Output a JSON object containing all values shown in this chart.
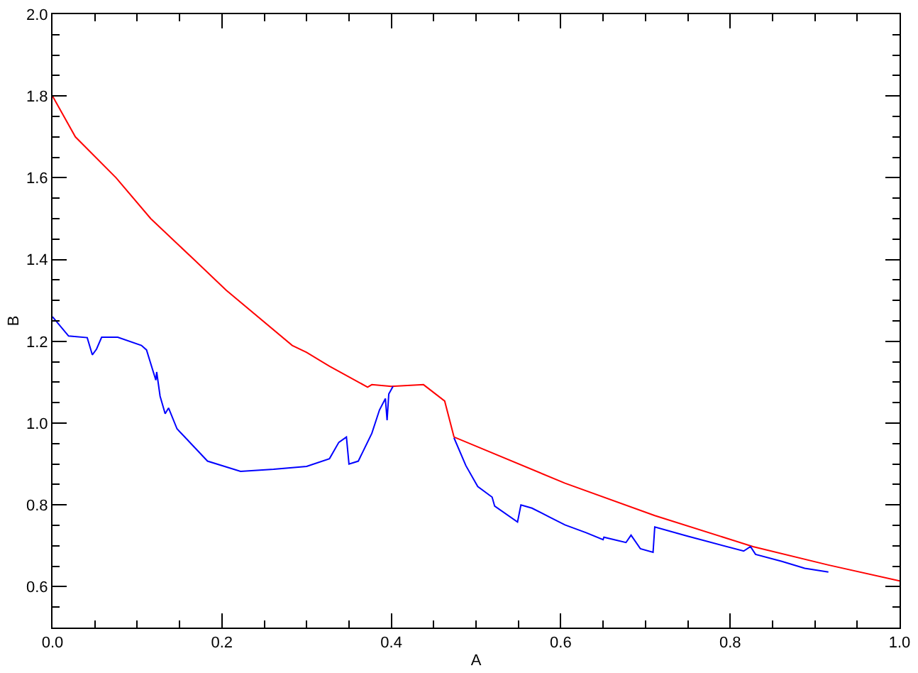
{
  "chart_data": {
    "type": "line",
    "xlabel": "A",
    "ylabel": "B",
    "xlim": [
      0,
      1
    ],
    "ylim": [
      0.5,
      2.0
    ],
    "xticks": [
      {
        "value": 0,
        "label": "0.0"
      },
      {
        "value": 0.05,
        "label": null
      },
      {
        "value": 0.1,
        "label": null
      },
      {
        "value": 0.15,
        "label": null
      },
      {
        "value": 0.2,
        "label": "0.2"
      },
      {
        "value": 0.25,
        "label": null
      },
      {
        "value": 0.3,
        "label": null
      },
      {
        "value": 0.35,
        "label": null
      },
      {
        "value": 0.4,
        "label": "0.4"
      },
      {
        "value": 0.45,
        "label": null
      },
      {
        "value": 0.5,
        "label": null
      },
      {
        "value": 0.55,
        "label": null
      },
      {
        "value": 0.6,
        "label": "0.6"
      },
      {
        "value": 0.65,
        "label": null
      },
      {
        "value": 0.7,
        "label": null
      },
      {
        "value": 0.75,
        "label": null
      },
      {
        "value": 0.8,
        "label": "0.8"
      },
      {
        "value": 0.85,
        "label": null
      },
      {
        "value": 0.9,
        "label": null
      },
      {
        "value": 0.95,
        "label": null
      },
      {
        "value": 1,
        "label": "1.0"
      }
    ],
    "yticks": [
      {
        "value": 0.5,
        "label": null
      },
      {
        "value": 0.55,
        "label": null
      },
      {
        "value": 0.6,
        "label": "0.6"
      },
      {
        "value": 0.65,
        "label": null
      },
      {
        "value": 0.7,
        "label": null
      },
      {
        "value": 0.75,
        "label": null
      },
      {
        "value": 0.8,
        "label": "0.8"
      },
      {
        "value": 0.85,
        "label": null
      },
      {
        "value": 0.9,
        "label": null
      },
      {
        "value": 0.95,
        "label": null
      },
      {
        "value": 1.0,
        "label": "1.0"
      },
      {
        "value": 1.05,
        "label": null
      },
      {
        "value": 1.1,
        "label": null
      },
      {
        "value": 1.15,
        "label": null
      },
      {
        "value": 1.2,
        "label": "1.2"
      },
      {
        "value": 1.25,
        "label": null
      },
      {
        "value": 1.3,
        "label": null
      },
      {
        "value": 1.35,
        "label": null
      },
      {
        "value": 1.4,
        "label": "1.4"
      },
      {
        "value": 1.45,
        "label": null
      },
      {
        "value": 1.5,
        "label": null
      },
      {
        "value": 1.55,
        "label": null
      },
      {
        "value": 1.6,
        "label": "1.6"
      },
      {
        "value": 1.65,
        "label": null
      },
      {
        "value": 1.7,
        "label": null
      },
      {
        "value": 1.75,
        "label": null
      },
      {
        "value": 1.8,
        "label": "1.8"
      },
      {
        "value": 1.85,
        "label": null
      },
      {
        "value": 1.9,
        "label": null
      },
      {
        "value": 1.95,
        "label": null
      },
      {
        "value": 2.0,
        "label": "2.0"
      }
    ],
    "grid": false,
    "marker": "none",
    "line_style": "solid",
    "series": [
      {
        "color": "#ff0000",
        "x": [
          0,
          0.027,
          0.075,
          0.116,
          0.167,
          0.205,
          0.283,
          0.3,
          0.327,
          0.372,
          0.377,
          0.4,
          0.438,
          0.463,
          0.474,
          0.605,
          0.711,
          0.827,
          0.916,
          1.0
        ],
        "values": [
          1.8,
          1.7,
          1.6,
          1.5,
          1.4,
          1.325,
          1.19,
          1.173,
          1.139,
          1.088,
          1.094,
          1.09,
          1.094,
          1.054,
          0.966,
          0.853,
          0.774,
          0.698,
          0.653,
          0.614
        ]
      },
      {
        "color": "#0000ff",
        "x": [
          0,
          0.019,
          0.041,
          0.047,
          0.052,
          0.058,
          0.077,
          0.105,
          0.111,
          0.122,
          0.123,
          0.127,
          0.133,
          0.137,
          0.147,
          0.183,
          0.222,
          0.261,
          0.3,
          0.327,
          0.338,
          0.347,
          0.35,
          0.361,
          0.377,
          0.386,
          0.393,
          0.395,
          0.397,
          0.402,
          0.44,
          0.474,
          0.488,
          0.502,
          0.519,
          0.522,
          0.549,
          0.553,
          0.566,
          0.588,
          0.605,
          0.63,
          0.65,
          0.651,
          0.677,
          0.683,
          0.694,
          0.709,
          0.711,
          0.749,
          0.816,
          0.824,
          0.83,
          0.861,
          0.888,
          0.916
        ],
        "values": [
          1.26,
          1.213,
          1.209,
          1.167,
          1.181,
          1.21,
          1.21,
          1.19,
          1.179,
          1.105,
          1.125,
          1.066,
          1.023,
          1.037,
          0.986,
          0.907,
          0.882,
          0.887,
          0.894,
          0.913,
          0.953,
          0.966,
          0.9,
          0.907,
          0.975,
          1.032,
          1.06,
          1.007,
          1.071,
          1.09,
          null,
          0.964,
          0.896,
          0.845,
          0.819,
          0.797,
          0.758,
          0.8,
          0.792,
          0.769,
          0.751,
          0.732,
          0.715,
          0.721,
          0.708,
          0.726,
          0.693,
          0.684,
          0.746,
          0.724,
          0.687,
          0.698,
          0.679,
          0.662,
          0.645,
          0.636
        ]
      }
    ]
  }
}
